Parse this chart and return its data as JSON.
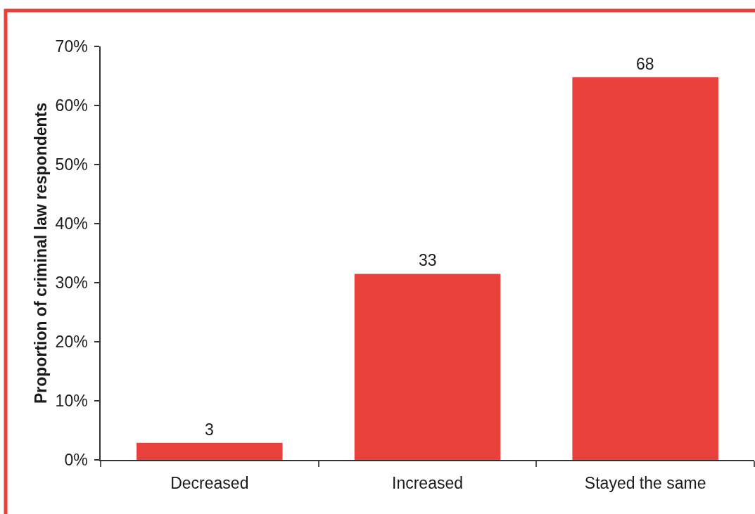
{
  "chart_data": {
    "type": "bar",
    "ylabel": "Proportion of criminal law respondents",
    "categories": [
      "Decreased",
      "Increased",
      "Stayed the same"
    ],
    "values": [
      2.9,
      31.5,
      64.8
    ],
    "color": "#e8403a",
    "ylim": [
      0,
      70
    ],
    "yticks": [
      {
        "value": 0,
        "label": "0%"
      },
      {
        "value": 10,
        "label": "10%"
      },
      {
        "value": 20,
        "label": "20%"
      },
      {
        "value": 30,
        "label": "30%"
      },
      {
        "value": 40,
        "label": "40%"
      },
      {
        "value": 50,
        "label": "50%"
      },
      {
        "value": 60,
        "label": "60%"
      },
      {
        "value": 70,
        "label": "70%"
      }
    ],
    "annotations": [
      {
        "text": "3",
        "x": "Decreased",
        "y": 2.9
      },
      {
        "text": "33",
        "x": "Increased",
        "y": 31.5
      },
      {
        "text": "68",
        "x": "Stayed the same",
        "y": 64.8
      }
    ],
    "legend": false
  }
}
